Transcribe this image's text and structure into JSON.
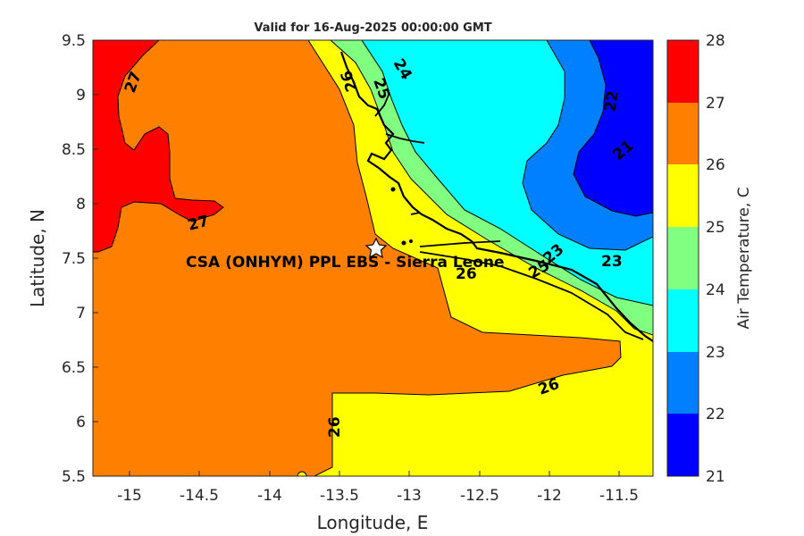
{
  "title": "Valid for 16-Aug-2025 00:00:00 GMT",
  "axes": {
    "xlabel": "Longitude, E",
    "ylabel": "Latitude, N",
    "xticks": [
      "-15",
      "-14.5",
      "-14",
      "-13.5",
      "-13",
      "-12.5",
      "-12",
      "-11.5"
    ],
    "yticks": [
      "9.5",
      "9",
      "8.5",
      "8",
      "7.5",
      "7",
      "6.5",
      "6",
      "5.5"
    ]
  },
  "colorbar": {
    "label": "Air Temperature, C",
    "ticks": [
      "28",
      "27",
      "26",
      "25",
      "24",
      "23",
      "22",
      "21"
    ],
    "colors": [
      "#800000",
      "#ff0000",
      "#ff8000",
      "#ffff00",
      "#80ff80",
      "#00ffff",
      "#0080ff",
      "#0000ff"
    ]
  },
  "site": {
    "label": "CSA (ONHYM) PPL EBS  - Sierra Leone",
    "lon": -13.23,
    "lat": 7.59
  },
  "contour_labels": [
    "27",
    "27",
    "26",
    "25",
    "24",
    "22",
    "21",
    "23",
    "26",
    "25",
    "23",
    "26",
    "26"
  ],
  "chart_data": {
    "type": "heatmap",
    "title": "Valid for 16-Aug-2025 00:00:00 GMT",
    "xlabel": "Longitude, E",
    "ylabel": "Latitude, N",
    "xlim": [
      -15.25,
      -11.25
    ],
    "ylim": [
      5.5,
      9.5
    ],
    "colorbar_label": "Air Temperature, C",
    "colorbar_range": [
      21,
      28
    ],
    "levels": [
      21,
      22,
      23,
      24,
      25,
      26,
      27,
      28
    ],
    "regions": [
      {
        "range": "26-27",
        "where": "most of the ocean area"
      },
      {
        "range": "27-28",
        "where": "north-west corner"
      },
      {
        "range": "25-26",
        "where": "south-east and along the coast"
      },
      {
        "range": "24-25",
        "where": "coastal band"
      },
      {
        "range": "23-24",
        "where": "inland north-east"
      },
      {
        "range": "22-23",
        "where": "inland north-east"
      },
      {
        "range": "21-22",
        "where": "far north-east corner"
      }
    ]
  }
}
